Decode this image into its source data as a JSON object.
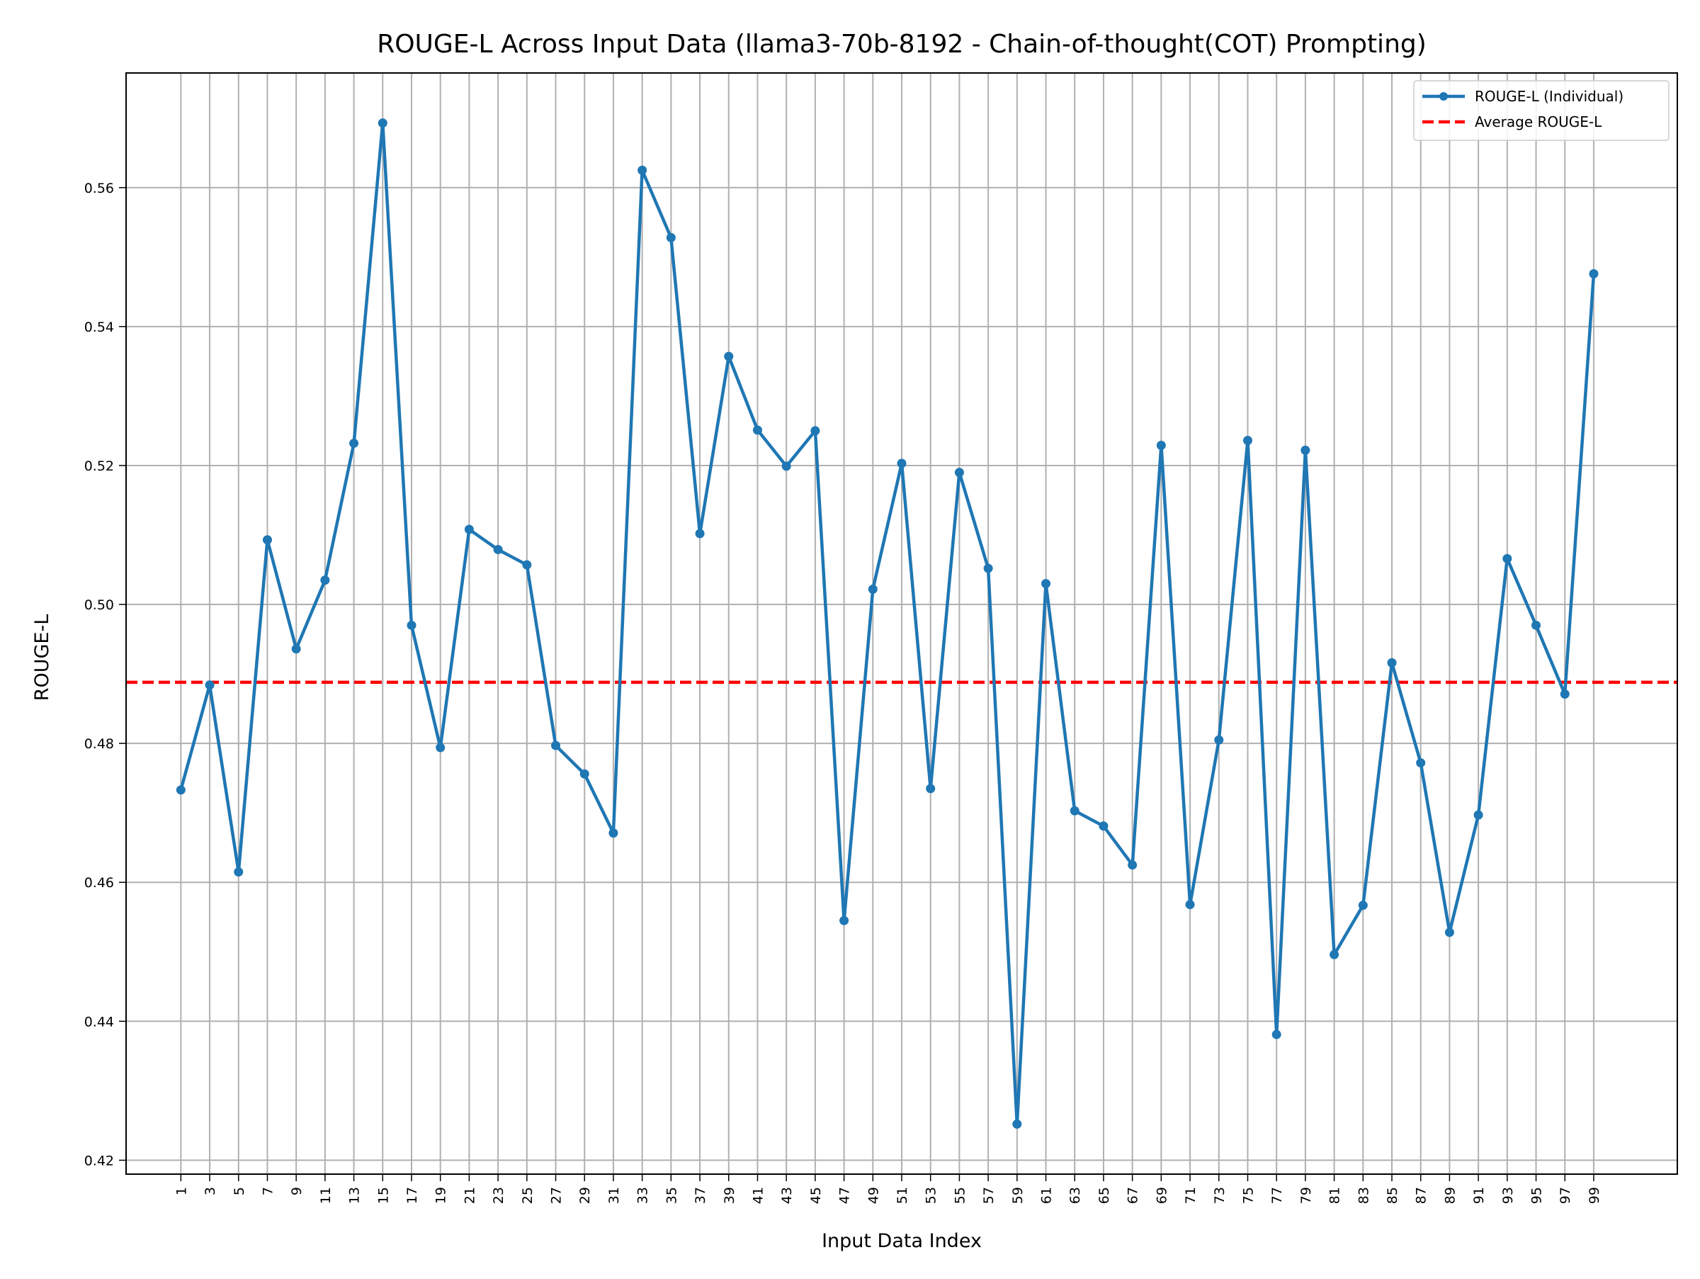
{
  "chart_data": {
    "type": "line",
    "title": "ROUGE-L Across Input Data (llama3-70b-8192 - Chain-of-thought(COT) Prompting)",
    "xlabel": "Input Data Index",
    "ylabel": "ROUGE-L",
    "xlim": [
      -2.8,
      104.8
    ],
    "ylim": [
      0.418,
      0.5765
    ],
    "xticks": [
      1,
      3,
      5,
      7,
      9,
      11,
      13,
      15,
      17,
      19,
      21,
      23,
      25,
      27,
      29,
      31,
      33,
      35,
      37,
      39,
      41,
      43,
      45,
      47,
      49,
      51,
      53,
      55,
      57,
      59,
      61,
      63,
      65,
      67,
      69,
      71,
      73,
      75,
      77,
      79,
      81,
      83,
      85,
      87,
      89,
      91,
      93,
      95,
      97,
      99
    ],
    "yticks": [
      0.42,
      0.44,
      0.46,
      0.48,
      0.5,
      0.52,
      0.54,
      0.56
    ],
    "ytick_labels": [
      "0.42",
      "0.44",
      "0.46",
      "0.48",
      "0.50",
      "0.52",
      "0.54",
      "0.56"
    ],
    "grid": true,
    "legend_position": "top-right",
    "series": [
      {
        "name": "ROUGE-L (Individual)",
        "color": "#1f77b4",
        "style": "solid-with-markers",
        "x": [
          1,
          3,
          5,
          7,
          9,
          11,
          13,
          15,
          17,
          19,
          21,
          23,
          25,
          27,
          29,
          31,
          33,
          35,
          37,
          39,
          41,
          43,
          45,
          47,
          49,
          51,
          53,
          55,
          57,
          59,
          61,
          63,
          65,
          67,
          69,
          71,
          73,
          75,
          77,
          79,
          81,
          83,
          85,
          87,
          89,
          91,
          93,
          95,
          97,
          99
        ],
        "values": [
          0.4733,
          0.4884,
          0.4615,
          0.5093,
          0.4936,
          0.5035,
          0.5232,
          0.5693,
          0.497,
          0.4794,
          0.5108,
          0.5079,
          0.5057,
          0.4797,
          0.4756,
          0.4671,
          0.5625,
          0.5528,
          0.5102,
          0.5357,
          0.5251,
          0.5199,
          0.525,
          0.4545,
          0.5022,
          0.5203,
          0.4735,
          0.519,
          0.5052,
          0.4252,
          0.503,
          0.4703,
          0.4681,
          0.4625,
          0.5229,
          0.4568,
          0.4805,
          0.5236,
          0.4381,
          0.5222,
          0.4496,
          0.4567,
          0.4916,
          0.4772,
          0.4528,
          0.4697,
          0.5066,
          0.497,
          0.4871,
          0.5476
        ]
      },
      {
        "name": "Average ROUGE-L",
        "color": "#ff0000",
        "style": "dashed",
        "value": 0.4888
      }
    ]
  }
}
